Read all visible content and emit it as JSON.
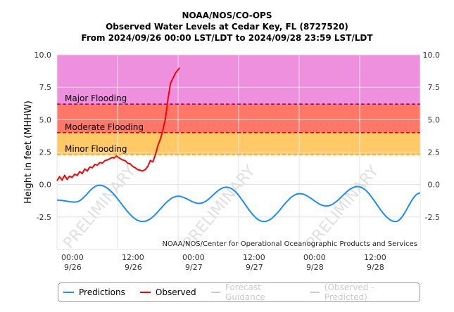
{
  "header": {
    "line1": "NOAA/NOS/CO-OPS",
    "line2": "Observed Water Levels at Cedar Key, FL (8727520)",
    "line3": "From 2024/09/26 00:00 LST/LDT to 2024/09/28 23:59 LST/LDT"
  },
  "credit": "NOAA/NOS/Center for Operational Oceanographic Products and Services",
  "watermark": "PRELIMINARY",
  "colors": {
    "predictions": "#1a8cff",
    "observed": "#ff0000",
    "major": "#ee90dd",
    "moderate": "#ff7766",
    "minor": "#ffc966"
  },
  "legend": [
    {
      "label": "Predictions",
      "color": "#1a8cff",
      "active": true
    },
    {
      "label": "Observed",
      "color": "#ff0000",
      "active": true
    },
    {
      "label": "Forecast Guidance",
      "color": "#cccccc",
      "active": false
    },
    {
      "label": "(Observed - Predicted)",
      "color": "#cccccc",
      "active": false
    }
  ],
  "chart_data": {
    "type": "line",
    "ylabel": "Height in feet (MHHW)",
    "ylim": [
      -5,
      10
    ],
    "xlim_hours": [
      0,
      72
    ],
    "yticks": [
      {
        "v": 10,
        "label": "10.0"
      },
      {
        "v": 7.5,
        "label": "7.5"
      },
      {
        "v": 5,
        "label": "5.0"
      },
      {
        "v": 2.5,
        "label": "2.5"
      },
      {
        "v": 0,
        "label": "0.0"
      },
      {
        "v": -2.5,
        "label": "-2.5"
      }
    ],
    "xticks": [
      {
        "h": 0,
        "time": "00:00",
        "date": "9/26"
      },
      {
        "h": 12,
        "time": "12:00",
        "date": "9/26"
      },
      {
        "h": 24,
        "time": "00:00",
        "date": "9/27"
      },
      {
        "h": 36,
        "time": "12:00",
        "date": "9/27"
      },
      {
        "h": 48,
        "time": "00:00",
        "date": "9/28"
      },
      {
        "h": 60,
        "time": "12:00",
        "date": "9/28"
      }
    ],
    "thresholds": [
      {
        "label": "Major Flooding",
        "value": 6.2,
        "color": "#880088"
      },
      {
        "label": "Moderate Flooding",
        "value": 4.0,
        "color": "#dd0000"
      },
      {
        "label": "Minor Flooding",
        "value": 2.3,
        "color": "#ffaa00"
      }
    ],
    "series": [
      {
        "name": "Predictions",
        "points": [
          [
            0,
            -1.2
          ],
          [
            3.6,
            -1.35
          ],
          [
            8.4,
            -0.05
          ],
          [
            17,
            -2.85
          ],
          [
            24,
            -0.9
          ],
          [
            28.2,
            -1.45
          ],
          [
            33.6,
            -0.2
          ],
          [
            41,
            -2.85
          ],
          [
            48.1,
            -0.7
          ],
          [
            53.4,
            -1.65
          ],
          [
            59.6,
            -0.15
          ],
          [
            67.1,
            -2.85
          ],
          [
            72,
            -0.65
          ]
        ]
      },
      {
        "name": "Observed",
        "points": [
          [
            0,
            0.3
          ],
          [
            0.5,
            0.6
          ],
          [
            1,
            0.35
          ],
          [
            1.5,
            0.7
          ],
          [
            2,
            0.4
          ],
          [
            2.5,
            0.65
          ],
          [
            3,
            0.55
          ],
          [
            3.5,
            0.8
          ],
          [
            4,
            0.7
          ],
          [
            4.5,
            1.0
          ],
          [
            5,
            0.85
          ],
          [
            5.5,
            1.2
          ],
          [
            6,
            1.05
          ],
          [
            6.5,
            1.35
          ],
          [
            7,
            1.3
          ],
          [
            7.5,
            1.55
          ],
          [
            8,
            1.5
          ],
          [
            8.5,
            1.7
          ],
          [
            9,
            1.65
          ],
          [
            9.5,
            1.85
          ],
          [
            10,
            1.9
          ],
          [
            10.5,
            2.0
          ],
          [
            11,
            2.1
          ],
          [
            11.3,
            2.05
          ],
          [
            11.8,
            2.2
          ],
          [
            12.3,
            2.05
          ],
          [
            13,
            1.9
          ],
          [
            13.5,
            1.85
          ],
          [
            14,
            1.65
          ],
          [
            14.5,
            1.6
          ],
          [
            15,
            1.4
          ],
          [
            15.5,
            1.3
          ],
          [
            16,
            1.15
          ],
          [
            16.5,
            1.1
          ],
          [
            17,
            1.05
          ],
          [
            17.5,
            1.15
          ],
          [
            18,
            1.4
          ],
          [
            18.5,
            1.85
          ],
          [
            19,
            1.75
          ],
          [
            19.5,
            2.3
          ],
          [
            20,
            3.0
          ],
          [
            20.5,
            3.5
          ],
          [
            21,
            4.2
          ],
          [
            21.5,
            5.1
          ],
          [
            22,
            6.6
          ],
          [
            22.5,
            7.8
          ],
          [
            23,
            8.2
          ],
          [
            23.5,
            8.6
          ],
          [
            24.3,
            9.0
          ]
        ]
      }
    ]
  }
}
